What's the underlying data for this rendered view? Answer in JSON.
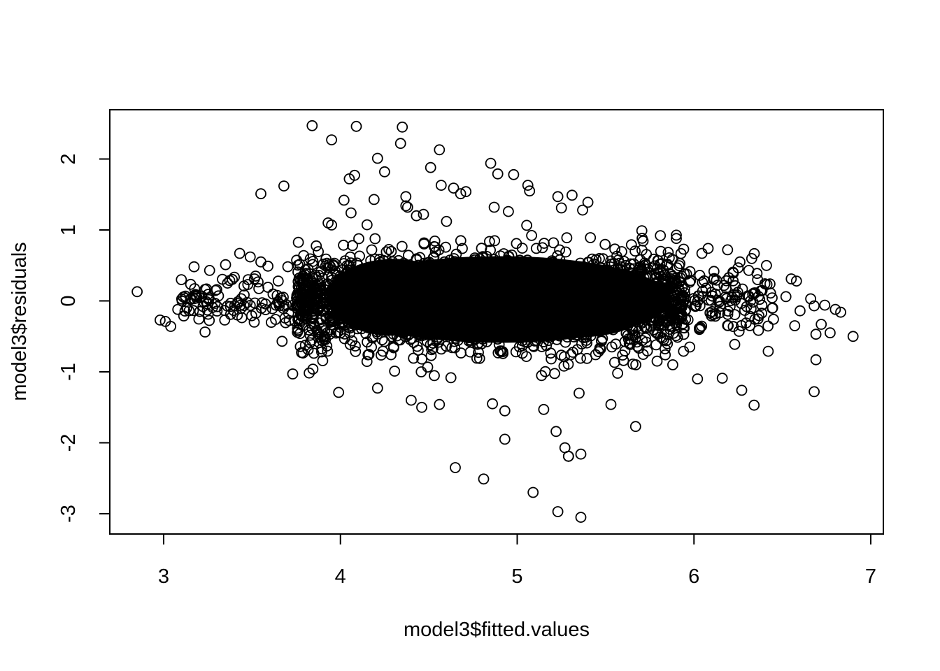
{
  "chart_data": {
    "type": "scatter",
    "title": "",
    "xlabel": "model3$fitted.values",
    "ylabel": "model3$residuals",
    "xlim": [
      2.7,
      7.07
    ],
    "ylim": [
      -3.3,
      2.68
    ],
    "x_ticks": [
      3,
      4,
      5,
      6,
      7
    ],
    "y_ticks": [
      -3,
      -2,
      -1,
      0,
      1,
      2
    ],
    "x_tick_labels": [
      "3",
      "4",
      "5",
      "6",
      "7"
    ],
    "y_tick_labels": [
      "-3",
      "-2",
      "-1",
      "0",
      "1",
      "2"
    ],
    "marker": "open-circle",
    "grid": false,
    "legend": "none",
    "colors": {
      "points": "#000000",
      "frame": "#000000",
      "background": "#ffffff"
    },
    "note": "dense central cloud spans roughly x 3.7 to 6.0, y -0.9 to 0.9",
    "series": [
      {
        "x": [
          2.85,
          3.84,
          3.95,
          4.09,
          4.35,
          4.34,
          4.56,
          4.85,
          4.51,
          4.21,
          4.25,
          4.08,
          4.05,
          4.89,
          4.98,
          3.55,
          3.68,
          4.19,
          4.57,
          4.64,
          4.68,
          4.71,
          5.06,
          5.07,
          4.37,
          4.37,
          4.38,
          5.23,
          5.31,
          5.25,
          5.37,
          5.4,
          4.43,
          4.47,
          4.6,
          4.87,
          4.95,
          3.93,
          3.95,
          4.02,
          4.06,
          5.81,
          5.9,
          6.08,
          6.19,
          6.26,
          6.31,
          6.36,
          6.41,
          6.52,
          6.55,
          6.58,
          6.6,
          6.66,
          6.68,
          6.74,
          6.77,
          6.8,
          6.83,
          6.9,
          6.72,
          6.69,
          6.69,
          6.68,
          6.57,
          6.42,
          6.34,
          6.27,
          6.16,
          6.02,
          2.98,
          3.01,
          3.04,
          3.08,
          3.1,
          3.13,
          3.18,
          3.26,
          3.35,
          3.43,
          3.49,
          3.52,
          3.55,
          3.59,
          3.73,
          3.99,
          4.21,
          4.4,
          4.46,
          4.56,
          4.86,
          4.93,
          5.15,
          5.22,
          5.53,
          5.67,
          5.88,
          4.65,
          4.81,
          5.09,
          5.27,
          5.29,
          5.29,
          5.36,
          5.36,
          5.23,
          4.93,
          5.35
        ],
        "y": [
          0.13,
          2.47,
          2.27,
          2.46,
          2.45,
          2.22,
          2.13,
          1.94,
          1.88,
          2.01,
          1.82,
          1.77,
          1.72,
          1.79,
          1.78,
          1.51,
          1.62,
          1.43,
          1.63,
          1.59,
          1.51,
          1.54,
          1.63,
          1.55,
          1.47,
          1.34,
          1.32,
          1.47,
          1.49,
          1.31,
          1.28,
          1.39,
          1.2,
          1.22,
          1.12,
          1.32,
          1.26,
          1.1,
          1.07,
          1.42,
          1.24,
          0.92,
          0.88,
          0.74,
          0.72,
          0.55,
          0.43,
          0.3,
          0.5,
          0.06,
          0.31,
          0.28,
          -0.14,
          0.03,
          -0.07,
          -0.06,
          -0.45,
          -0.12,
          -0.16,
          -0.5,
          -0.33,
          -0.47,
          -0.83,
          -1.28,
          -0.35,
          -0.71,
          -1.47,
          -1.26,
          -1.09,
          -1.1,
          -0.27,
          -0.29,
          -0.36,
          -0.12,
          0.3,
          -0.1,
          0.09,
          0.43,
          0.51,
          0.67,
          0.62,
          0.35,
          0.55,
          0.49,
          -1.03,
          -1.29,
          -1.23,
          -1.4,
          -1.5,
          -1.46,
          -1.45,
          -1.95,
          -1.53,
          -1.84,
          -1.46,
          -1.77,
          -0.9,
          -2.35,
          -2.51,
          -2.7,
          -2.07,
          -2.19,
          -2.19,
          -2.16,
          -3.05,
          -2.97,
          -1.55,
          -1.3
        ]
      }
    ]
  }
}
